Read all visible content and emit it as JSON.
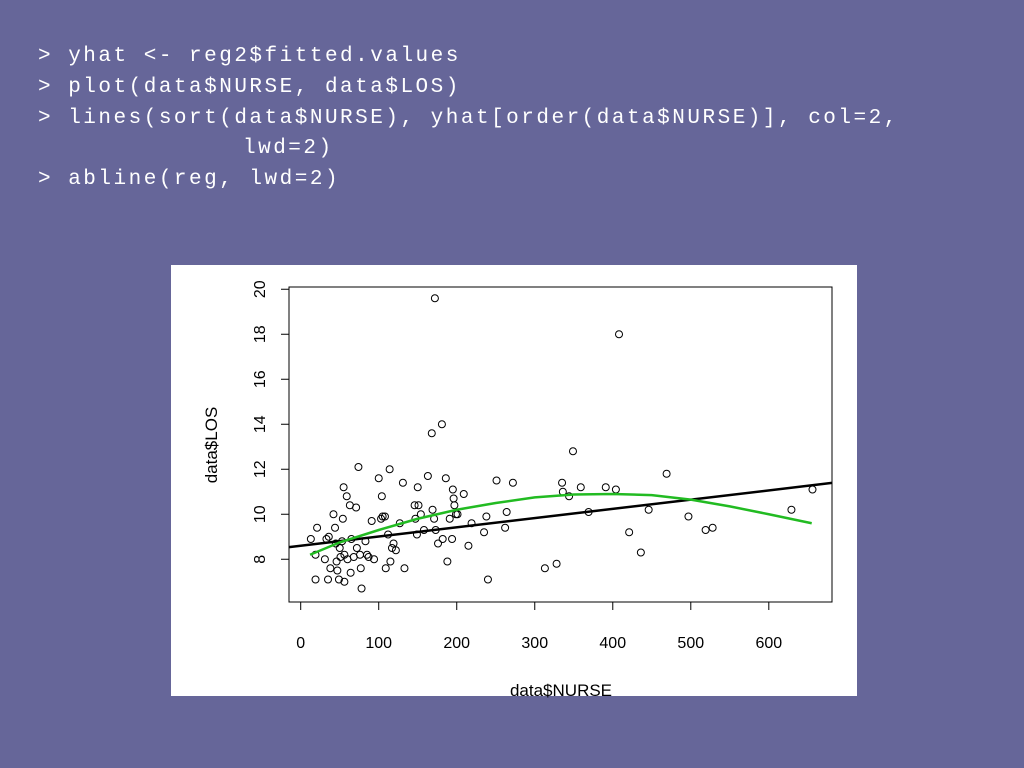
{
  "code": [
    "> yhat <- reg2$fitted.values",
    "> plot(data$NURSE, data$LOS)",
    "> lines(sort(data$NURSE), yhat[order(data$NURSE)], col=2,",
    "lwd=2)",
    "> abline(reg, lwd=2)"
  ],
  "chart_data": {
    "type": "scatter",
    "xlabel": "data$NURSE",
    "ylabel": "data$LOS",
    "x": [
      13,
      19,
      19,
      21,
      31,
      33,
      36,
      35,
      38,
      42,
      44,
      45,
      46,
      47,
      49,
      50,
      51,
      53,
      54,
      55,
      56,
      56,
      59,
      60,
      63,
      64,
      65,
      68,
      71,
      72,
      74,
      76,
      77,
      78,
      83,
      85,
      87,
      91,
      94,
      100,
      103,
      104,
      105,
      108,
      109,
      112,
      114,
      115,
      117,
      119,
      122,
      127,
      131,
      133,
      146,
      147,
      149,
      150,
      151,
      154,
      158,
      163,
      168,
      169,
      171,
      172,
      173,
      176,
      181,
      182,
      186,
      188,
      191,
      194,
      195,
      196,
      197,
      199,
      201,
      209,
      215,
      219,
      235,
      238,
      240,
      251,
      262,
      264,
      272,
      313,
      328,
      335,
      336,
      344,
      349,
      359,
      369,
      391,
      404,
      408,
      421,
      436,
      446,
      469,
      497,
      519,
      528,
      629,
      656
    ],
    "values": [
      8.9,
      8.2,
      7.1,
      9.4,
      8.0,
      8.9,
      9.0,
      7.1,
      7.6,
      10.0,
      9.4,
      8.7,
      7.9,
      7.5,
      7.1,
      8.5,
      8.1,
      8.8,
      9.8,
      11.2,
      8.2,
      7.0,
      10.8,
      8.0,
      10.4,
      7.4,
      8.9,
      8.1,
      10.3,
      8.5,
      12.1,
      8.2,
      7.6,
      6.7,
      8.8,
      8.2,
      8.1,
      9.7,
      8.0,
      11.6,
      9.8,
      10.8,
      9.9,
      9.9,
      7.6,
      9.1,
      12.0,
      7.9,
      8.5,
      8.7,
      8.4,
      9.6,
      11.4,
      7.6,
      10.4,
      9.8,
      9.1,
      11.2,
      10.4,
      10.0,
      9.3,
      11.7,
      13.6,
      10.2,
      9.8,
      19.6,
      9.3,
      8.7,
      14.0,
      8.9,
      11.6,
      7.9,
      9.8,
      8.9,
      11.1,
      10.7,
      10.4,
      10.0,
      10.0,
      10.9,
      8.6,
      9.6,
      9.2,
      9.9,
      7.1,
      11.5,
      9.4,
      10.1,
      11.4,
      7.6,
      7.8,
      11.4,
      11.0,
      10.8,
      12.8,
      11.2,
      10.1,
      11.2,
      11.1,
      18.0,
      9.2,
      8.3,
      10.2,
      11.8,
      9.9,
      9.3,
      9.4,
      10.2,
      11.1
    ],
    "point_color": "#000000",
    "xlim": [
      -15,
      681
    ],
    "ylim": [
      6.1,
      20.1
    ],
    "xticks": [
      0,
      100,
      200,
      300,
      400,
      500,
      600
    ],
    "yticks": [
      8,
      10,
      12,
      14,
      16,
      18,
      20
    ],
    "abline": {
      "intercept": 8.6,
      "slope": 0.0041,
      "color": "#000000"
    },
    "fitted": {
      "color": "#22bb22",
      "x": [
        12,
        50,
        100,
        150,
        200,
        250,
        300,
        350,
        400,
        450,
        500,
        550,
        600,
        655
      ],
      "values": [
        8.2,
        8.75,
        9.3,
        9.8,
        10.2,
        10.5,
        10.75,
        10.88,
        10.9,
        10.85,
        10.65,
        10.35,
        10.0,
        9.6
      ]
    }
  }
}
